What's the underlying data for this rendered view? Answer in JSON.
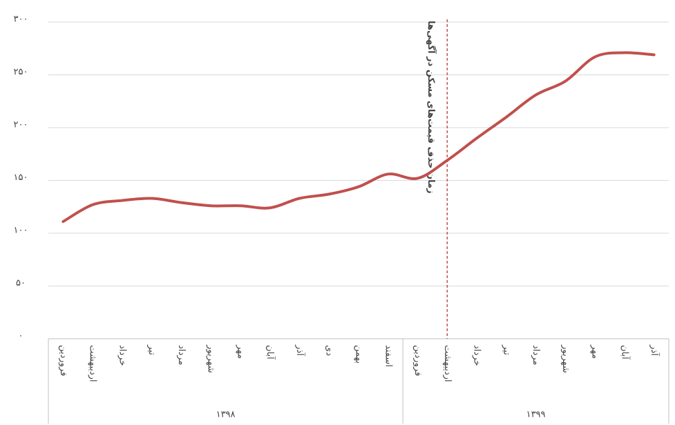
{
  "chart_data": {
    "type": "line",
    "groups": [
      {
        "label": "۱۳۹۸",
        "categories": [
          "فروردین",
          "اردیبهشت",
          "خرداد",
          "تیر",
          "مرداد",
          "شهریور",
          "مهر",
          "آبان",
          "آذر",
          "دی",
          "بهمن",
          "اسفند"
        ]
      },
      {
        "label": "۱۳۹۹",
        "categories": [
          "فروردین",
          "اردیبهشت",
          "خرداد",
          "تیر",
          "مرداد",
          "شهریور",
          "مهر",
          "آبان",
          "آذر"
        ]
      }
    ],
    "values": [
      111,
      127,
      131,
      133,
      129,
      126,
      126,
      124,
      133,
      137,
      144,
      156,
      152,
      169,
      190,
      210,
      231,
      244,
      267,
      271,
      269
    ],
    "color": "#c0504d",
    "ylim": [
      0,
      300
    ],
    "yticks": [
      {
        "value": 0,
        "label": "۰"
      },
      {
        "value": 50,
        "label": "۵۰"
      },
      {
        "value": 100,
        "label": "۱۰۰"
      },
      {
        "value": 150,
        "label": "۱۵۰"
      },
      {
        "value": 200,
        "label": "۲۰۰"
      },
      {
        "value": 250,
        "label": "۲۵۰"
      },
      {
        "value": 300,
        "label": "۳۰۰"
      }
    ],
    "grid": true,
    "annotation": {
      "text": "زمان حذف قیمت‌های مسکن در آگهی‌ها",
      "color": "#c0504d"
    }
  }
}
